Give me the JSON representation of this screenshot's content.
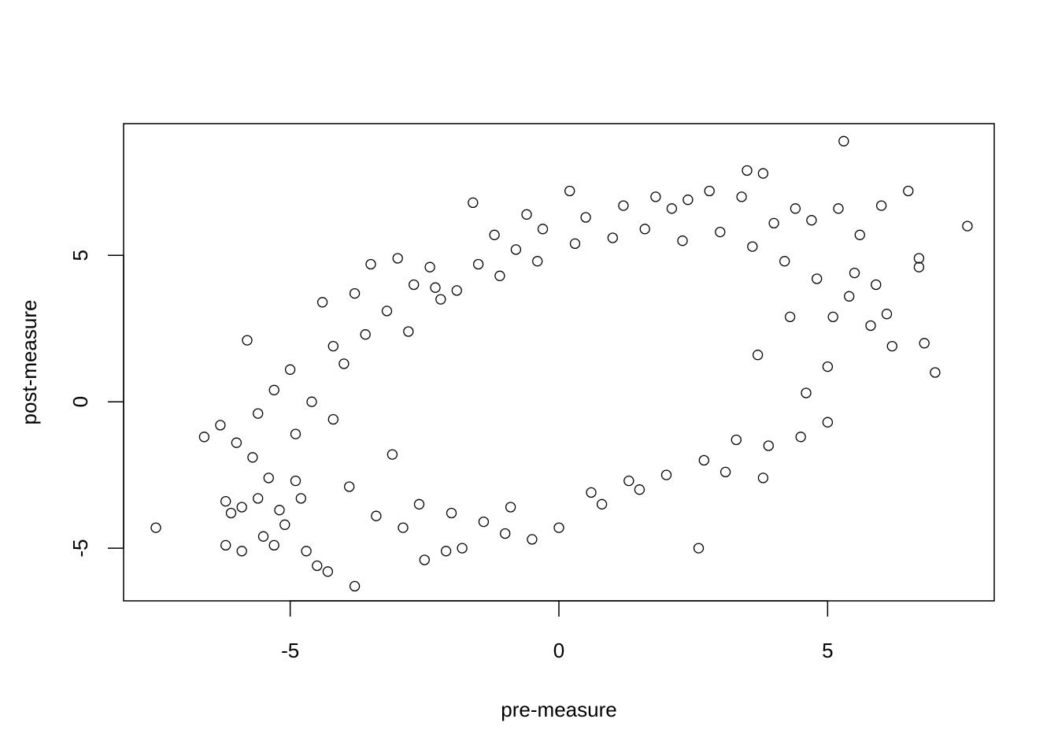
{
  "chart_data": {
    "type": "scatter",
    "title": "",
    "xlabel": "pre-measure",
    "ylabel": "post-measure",
    "xlim": [
      -8.1,
      8.1
    ],
    "ylim": [
      -6.8,
      9.5
    ],
    "xticks": [
      -5,
      0,
      5
    ],
    "yticks": [
      -5,
      0,
      5
    ],
    "grid": false,
    "legend": "none",
    "marker": "open-circle",
    "marker_color": "#000000",
    "series": [
      {
        "points": [
          [
            -7.5,
            -4.3
          ],
          [
            -6.6,
            -1.2
          ],
          [
            -6.3,
            -0.8
          ],
          [
            -6.2,
            -3.4
          ],
          [
            -6.1,
            -3.8
          ],
          [
            -6.2,
            -4.9
          ],
          [
            -5.9,
            -3.6
          ],
          [
            -5.9,
            -5.1
          ],
          [
            -5.8,
            2.1
          ],
          [
            -5.7,
            -1.9
          ],
          [
            -5.6,
            -3.3
          ],
          [
            -5.5,
            -4.6
          ],
          [
            -5.4,
            -2.6
          ],
          [
            -5.3,
            -4.9
          ],
          [
            -5.2,
            -3.7
          ],
          [
            -5.1,
            -4.2
          ],
          [
            -5.0,
            1.1
          ],
          [
            -4.9,
            -1.1
          ],
          [
            -4.8,
            -3.3
          ],
          [
            -4.7,
            -5.1
          ],
          [
            -4.5,
            -5.6
          ],
          [
            -4.4,
            3.4
          ],
          [
            -4.3,
            -5.8
          ],
          [
            -4.2,
            1.9
          ],
          [
            -3.8,
            -6.3
          ],
          [
            -3.8,
            3.7
          ],
          [
            -3.5,
            4.7
          ],
          [
            -3.0,
            4.9
          ],
          [
            -2.7,
            4.0
          ],
          [
            -2.5,
            -5.4
          ],
          [
            -2.4,
            4.6
          ],
          [
            -2.3,
            3.9
          ],
          [
            -2.1,
            -5.1
          ],
          [
            -1.8,
            -5.0
          ],
          [
            -1.6,
            6.8
          ],
          [
            -1.5,
            4.7
          ],
          [
            -1.2,
            5.7
          ],
          [
            -1.0,
            -4.5
          ],
          [
            -0.8,
            5.2
          ],
          [
            -0.6,
            6.4
          ],
          [
            -0.5,
            -4.7
          ],
          [
            -0.3,
            5.9
          ],
          [
            0.2,
            7.2
          ],
          [
            0.5,
            6.3
          ],
          [
            0.8,
            -3.5
          ],
          [
            1.2,
            6.7
          ],
          [
            1.5,
            -3.0
          ],
          [
            1.8,
            7.0
          ],
          [
            2.1,
            6.6
          ],
          [
            2.4,
            6.9
          ],
          [
            2.6,
            -5.0
          ],
          [
            2.8,
            7.2
          ],
          [
            3.1,
            -2.4
          ],
          [
            3.4,
            7.0
          ],
          [
            3.5,
            7.9
          ],
          [
            3.8,
            7.8
          ],
          [
            3.8,
            -2.6
          ],
          [
            4.0,
            6.1
          ],
          [
            4.4,
            6.6
          ],
          [
            4.5,
            -1.2
          ],
          [
            4.7,
            6.2
          ],
          [
            5.0,
            -0.7
          ],
          [
            5.1,
            2.9
          ],
          [
            5.2,
            6.6
          ],
          [
            5.3,
            8.9
          ],
          [
            5.5,
            4.4
          ],
          [
            5.6,
            5.7
          ],
          [
            5.8,
            2.6
          ],
          [
            5.9,
            4.0
          ],
          [
            6.1,
            3.0
          ],
          [
            6.2,
            1.9
          ],
          [
            6.0,
            6.7
          ],
          [
            6.5,
            7.2
          ],
          [
            6.7,
            4.9
          ],
          [
            6.7,
            4.6
          ],
          [
            6.8,
            2.0
          ],
          [
            7.0,
            1.0
          ],
          [
            7.6,
            6.0
          ],
          [
            -6.0,
            -1.4
          ],
          [
            -5.6,
            -0.4
          ],
          [
            -5.3,
            0.4
          ],
          [
            -4.9,
            -2.7
          ],
          [
            -4.6,
            0.0
          ],
          [
            -4.2,
            -0.6
          ],
          [
            -4.0,
            1.3
          ],
          [
            -3.9,
            -2.9
          ],
          [
            -3.6,
            2.3
          ],
          [
            -3.4,
            -3.9
          ],
          [
            -3.2,
            3.1
          ],
          [
            -3.1,
            -1.8
          ],
          [
            -2.9,
            -4.3
          ],
          [
            -2.8,
            2.4
          ],
          [
            -2.6,
            -3.5
          ],
          [
            -2.2,
            3.5
          ],
          [
            -2.0,
            -3.8
          ],
          [
            -1.9,
            3.8
          ],
          [
            -1.4,
            -4.1
          ],
          [
            -1.1,
            4.3
          ],
          [
            -0.9,
            -3.6
          ],
          [
            -0.4,
            4.8
          ],
          [
            0.0,
            -4.3
          ],
          [
            0.3,
            5.4
          ],
          [
            0.6,
            -3.1
          ],
          [
            1.0,
            5.6
          ],
          [
            1.3,
            -2.7
          ],
          [
            1.6,
            5.9
          ],
          [
            2.0,
            -2.5
          ],
          [
            2.3,
            5.5
          ],
          [
            2.7,
            -2.0
          ],
          [
            3.0,
            5.8
          ],
          [
            3.3,
            -1.3
          ],
          [
            3.6,
            5.3
          ],
          [
            3.9,
            -1.5
          ],
          [
            4.2,
            4.8
          ],
          [
            4.6,
            0.3
          ],
          [
            4.8,
            4.2
          ],
          [
            5.0,
            1.2
          ],
          [
            5.4,
            3.6
          ],
          [
            4.3,
            2.9
          ],
          [
            3.7,
            1.6
          ]
        ]
      }
    ]
  }
}
